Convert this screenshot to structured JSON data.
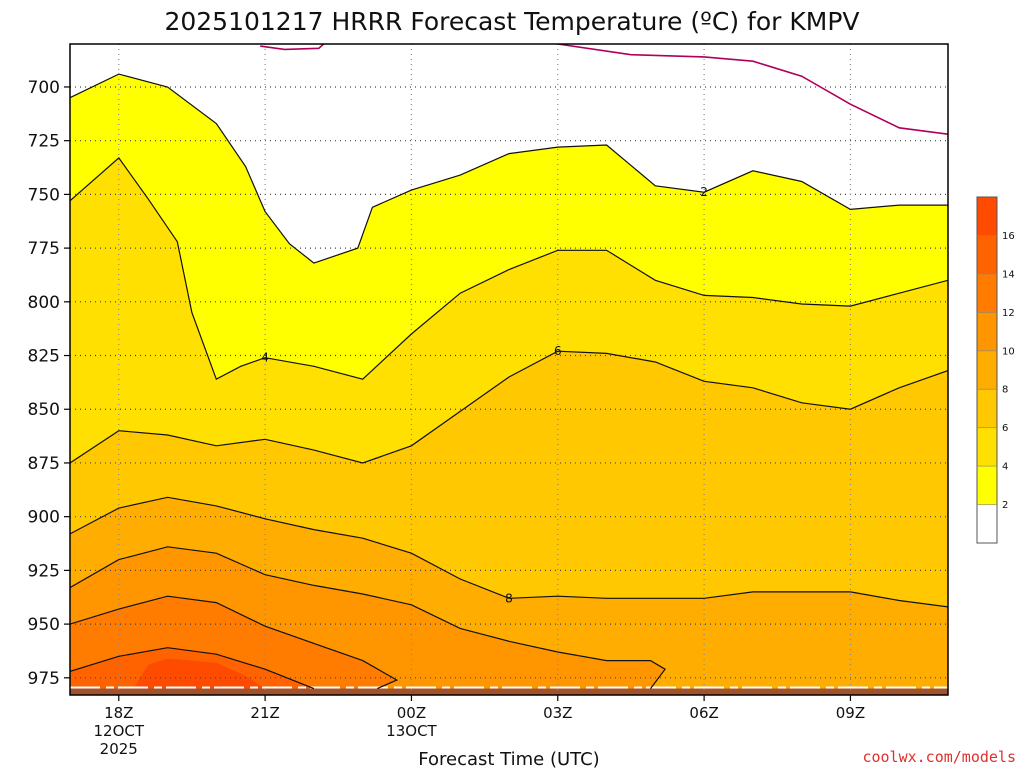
{
  "chart_data": {
    "type": "contour",
    "title": "2025101217 HRRR Forecast Temperature (ºC) for KMPV",
    "xlabel": "Forecast Time (UTC)",
    "ylabel": "",
    "credit": "coolwx.com/models",
    "x_ticks": [
      {
        "hour": 0,
        "lines": [
          "18Z",
          "12OCT",
          "2025"
        ]
      },
      {
        "hour": 3,
        "lines": [
          "21Z"
        ]
      },
      {
        "hour": 6,
        "lines": [
          "00Z",
          "13OCT"
        ]
      },
      {
        "hour": 9,
        "lines": [
          "03Z"
        ]
      },
      {
        "hour": 12,
        "lines": [
          "06Z"
        ]
      },
      {
        "hour": 15,
        "lines": [
          "09Z"
        ]
      }
    ],
    "xlim": [
      -1,
      17
    ],
    "y_ticks": [
      700,
      725,
      750,
      775,
      800,
      825,
      850,
      875,
      900,
      925,
      950,
      975
    ],
    "ylim_hPa": [
      680,
      983
    ],
    "surface_hPa": 980,
    "levels": [
      2,
      4,
      6,
      8,
      10,
      12,
      14,
      16
    ],
    "colorbar": {
      "ticks": [
        2,
        4,
        6,
        8,
        10,
        12,
        14,
        16
      ],
      "colors": [
        "#ffffff",
        "#ffff00",
        "#ffe000",
        "#ffc800",
        "#ffad00",
        "#ff9600",
        "#ff7c00",
        "#ff6300",
        "#ff4b00"
      ]
    },
    "band_colors": {
      "below_2": "#ffffff",
      "2_to_4": "#ffff00",
      "4_to_6": "#ffe000",
      "6_to_8": "#ffc800",
      "8_to_10": "#ffad00",
      "10_to_12": "#ff9600",
      "12_to_14": "#ff7c00",
      "14_to_16": "#ff6300",
      "above_16": "#ff4b00"
    },
    "freezing_line_color": "#b0005a",
    "ground_color": "#a0522d",
    "isotherms": [
      {
        "temp": 0,
        "segments": [
          [
            [
              2.9,
              681
            ],
            [
              3.4,
              682.5
            ],
            [
              4.1,
              682
            ],
            [
              4.2,
              680
            ]
          ],
          [
            [
              9.0,
              680
            ],
            [
              10.5,
              685
            ],
            [
              12.0,
              686
            ],
            [
              13.0,
              688
            ],
            [
              14.0,
              695
            ],
            [
              15.0,
              708
            ],
            [
              16.0,
              719
            ],
            [
              17,
              722
            ]
          ]
        ],
        "labels": []
      },
      {
        "temp": 2,
        "segments": [
          [
            [
              -1,
              705
            ],
            [
              0.0,
              694
            ],
            [
              1.0,
              700
            ],
            [
              2.0,
              717
            ],
            [
              2.6,
              737
            ],
            [
              3.0,
              758
            ],
            [
              3.5,
              773
            ],
            [
              4.0,
              782
            ],
            [
              4.9,
              775
            ],
            [
              5.2,
              756
            ],
            [
              6.0,
              748
            ],
            [
              7.0,
              741
            ],
            [
              8.0,
              731
            ],
            [
              9.0,
              728
            ],
            [
              10.0,
              727
            ],
            [
              11.0,
              746
            ],
            [
              12.0,
              749
            ],
            [
              13.0,
              739
            ],
            [
              14.0,
              744
            ],
            [
              15.0,
              757
            ],
            [
              16.0,
              755
            ],
            [
              17,
              755
            ]
          ]
        ],
        "labels": [
          {
            "hour": 12.0,
            "hPa": 749,
            "text": "2"
          }
        ]
      },
      {
        "temp": 4,
        "segments": [
          [
            [
              -1,
              753
            ],
            [
              0.0,
              733
            ],
            [
              0.6,
              752
            ],
            [
              1.2,
              772
            ],
            [
              1.5,
              805
            ],
            [
              2.0,
              836
            ],
            [
              2.5,
              830
            ],
            [
              3.0,
              826
            ],
            [
              4.0,
              830
            ],
            [
              5.0,
              836
            ],
            [
              6.0,
              815
            ],
            [
              7.0,
              796
            ],
            [
              8.0,
              785
            ],
            [
              9.0,
              776
            ],
            [
              10.0,
              776
            ],
            [
              11.0,
              790
            ],
            [
              12.0,
              797
            ],
            [
              13.0,
              798
            ],
            [
              14.0,
              801
            ],
            [
              15.0,
              802
            ],
            [
              16.0,
              796
            ],
            [
              17,
              790
            ]
          ]
        ],
        "labels": [
          {
            "hour": 3.0,
            "hPa": 826,
            "text": "4"
          }
        ]
      },
      {
        "temp": 6,
        "segments": [
          [
            [
              -1,
              875
            ],
            [
              0.0,
              860
            ],
            [
              1.0,
              862
            ],
            [
              2.0,
              867
            ],
            [
              3.0,
              864
            ],
            [
              4.0,
              869
            ],
            [
              5.0,
              875
            ],
            [
              6.0,
              867
            ],
            [
              7.0,
              851
            ],
            [
              8.0,
              835
            ],
            [
              9.0,
              823
            ],
            [
              10.0,
              824
            ],
            [
              11.0,
              828
            ],
            [
              12.0,
              837
            ],
            [
              13.0,
              840
            ],
            [
              14.0,
              847
            ],
            [
              15.0,
              850
            ],
            [
              16.0,
              840
            ],
            [
              17,
              832
            ]
          ]
        ],
        "labels": [
          {
            "hour": 9.0,
            "hPa": 823,
            "text": "6"
          }
        ]
      },
      {
        "temp": 8,
        "segments": [
          [
            [
              -1,
              908
            ],
            [
              0.0,
              896
            ],
            [
              1.0,
              891
            ],
            [
              2.0,
              895
            ],
            [
              3.0,
              901
            ],
            [
              4.0,
              906
            ],
            [
              5.0,
              910
            ],
            [
              6.0,
              917
            ],
            [
              7.0,
              929
            ],
            [
              8.0,
              938
            ],
            [
              9.0,
              937
            ],
            [
              10.0,
              938
            ],
            [
              11.0,
              938
            ],
            [
              12.0,
              938
            ],
            [
              13.0,
              935
            ],
            [
              14.0,
              935
            ],
            [
              15.0,
              935
            ],
            [
              16.0,
              939
            ],
            [
              17,
              942
            ]
          ]
        ],
        "labels": [
          {
            "hour": 8.0,
            "hPa": 938,
            "text": "8"
          }
        ]
      },
      {
        "temp": 10,
        "segments": [
          [
            [
              -1,
              933
            ],
            [
              0.0,
              920
            ],
            [
              1.0,
              914
            ],
            [
              2.0,
              917
            ],
            [
              3.0,
              927
            ],
            [
              4.0,
              932
            ],
            [
              5.0,
              936
            ],
            [
              6.0,
              941
            ],
            [
              7.0,
              952
            ],
            [
              8.0,
              958
            ],
            [
              9.0,
              963
            ],
            [
              10.0,
              967
            ],
            [
              10.9,
              967
            ],
            [
              11.2,
              971
            ],
            [
              10.9,
              980
            ]
          ]
        ],
        "labels": []
      },
      {
        "temp": 12,
        "segments": [
          [
            [
              -1,
              950
            ],
            [
              0.0,
              943
            ],
            [
              1.0,
              937
            ],
            [
              2.0,
              940
            ],
            [
              3.0,
              951
            ],
            [
              4.0,
              959
            ],
            [
              5.0,
              967
            ],
            [
              5.7,
              976
            ],
            [
              5.3,
              980
            ]
          ]
        ],
        "labels": []
      },
      {
        "temp": 14,
        "segments": [
          [
            [
              -1,
              972
            ],
            [
              0.0,
              965
            ],
            [
              1.0,
              961
            ],
            [
              2.0,
              964
            ],
            [
              3.0,
              971
            ],
            [
              4.0,
              980
            ]
          ]
        ],
        "labels": []
      }
    ],
    "band_fills": [
      {
        "band": "above_16",
        "color": "#ff4b00",
        "points": [
          [
            0.3,
            980
          ],
          [
            0.6,
            969
          ],
          [
            1.0,
            966
          ],
          [
            1.5,
            967
          ],
          [
            2.0,
            968
          ],
          [
            2.6,
            974
          ],
          [
            3.0,
            980
          ]
        ]
      },
      {
        "band": "14_to_16",
        "color": "#ff6300",
        "points": [
          [
            0.0,
            968
          ],
          [
            0.4,
            965
          ],
          [
            0.6,
            969
          ]
        ]
      }
    ]
  }
}
